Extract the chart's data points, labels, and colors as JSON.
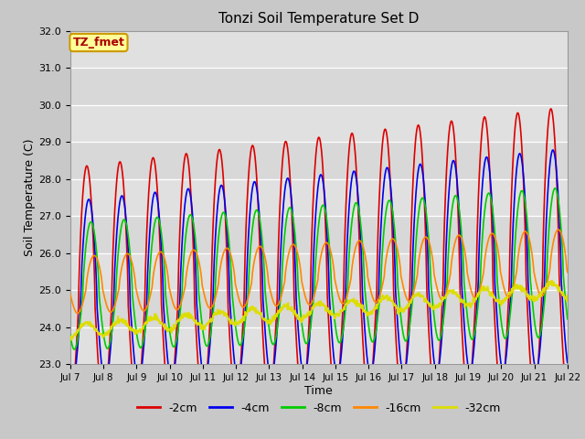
{
  "title": "Tonzi Soil Temperature Set D",
  "xlabel": "Time",
  "ylabel": "Soil Temperature (C)",
  "ylim": [
    23.0,
    32.0
  ],
  "yticks": [
    23.0,
    24.0,
    25.0,
    26.0,
    27.0,
    28.0,
    29.0,
    30.0,
    31.0,
    32.0
  ],
  "xtick_labels": [
    "Jul 7",
    "Jul 8",
    "Jul 9",
    "Jul 10",
    "Jul 11",
    "Jul 12",
    "Jul 13",
    "Jul 14",
    "Jul 15",
    "Jul 16",
    "Jul 17",
    "Jul 18",
    "Jul 19",
    "Jul 20",
    "Jul 21",
    "Jul 22"
  ],
  "legend_labels": [
    "-2cm",
    "-4cm",
    "-8cm",
    "-16cm",
    "-32cm"
  ],
  "line_colors": [
    "#dd0000",
    "#0000ee",
    "#00cc00",
    "#ff8800",
    "#dddd00"
  ],
  "annotation_text": "TZ_fmet",
  "annotation_bg": "#ffff99",
  "annotation_border": "#cc9900",
  "fig_bg": "#c8c8c8",
  "plot_bg": "#e0e0e0",
  "band_color": "#d0d0d0",
  "num_points": 1440,
  "total_days": 15
}
